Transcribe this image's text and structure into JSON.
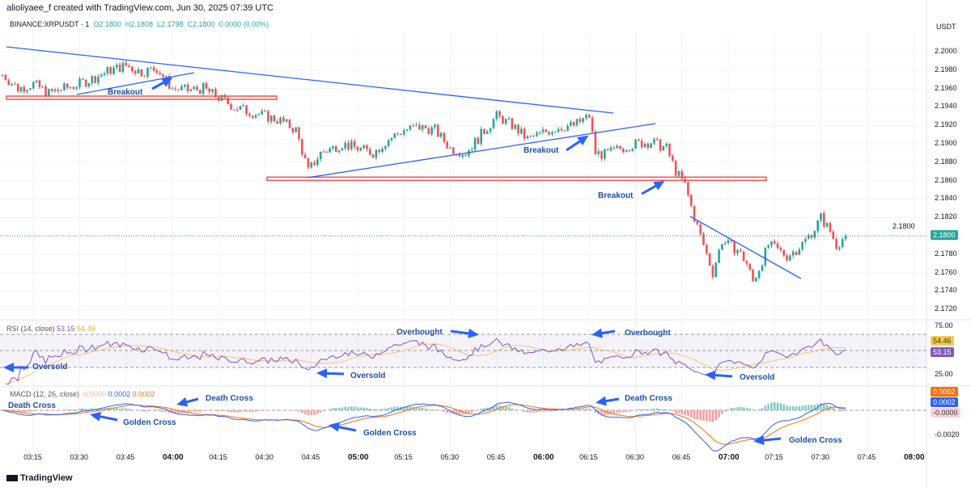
{
  "header": {
    "credit": "alioliyaee_f created with TradingView.com, Jun 30, 2025 07:39 UTC"
  },
  "legend": {
    "symbol": "BINANCE:XRPUSDT · 1",
    "o": "O2.1800",
    "h": "H2.1808",
    "l": "L2.1798",
    "c": "C2.1800",
    "chg": "0.0000 (0.00%)"
  },
  "rsi_legend": {
    "title": "RSI (14, close)",
    "v1": "53.15",
    "v2": "54.46"
  },
  "macd_legend": {
    "title": "MACD (12, 26, close)",
    "v1": "-0.0000",
    "v2": "0.0002",
    "v3": "0.0002"
  },
  "footer": {
    "brand": "TradingView"
  },
  "colors": {
    "up": "#26a69a",
    "down": "#ef5350",
    "annot": "#2962ff",
    "rsi": "#7e57c2",
    "rsi_ma": "#f7c66a",
    "macd": "#2962ff",
    "signal": "#ff6d00"
  },
  "annotations": {
    "breakout1": "Breakout",
    "breakout2": "Breakout",
    "breakout3": "Breakout",
    "overbought1": "Overbought",
    "overbought2": "Overbought",
    "oversold1": "Oversold",
    "oversold2": "Oversold",
    "oversold3": "Oversold",
    "death1": "Death Cross",
    "death2": "Death Cross",
    "death3": "Death Cross",
    "golden1": "Golden Cross",
    "golden2": "Golden Cross",
    "golden3": "Golden Cross"
  },
  "chart_data": {
    "type": "candlestick",
    "currency": "USDT",
    "ylim": [
      2.17,
      2.202
    ],
    "yticks": [
      "2.2000",
      "2.1980",
      "2.1960",
      "2.1940",
      "2.1920",
      "2.1900",
      "2.1880",
      "2.1860",
      "2.1840",
      "2.1820",
      "2.1800",
      "2.1780",
      "2.1760",
      "2.1740",
      "2.1720"
    ],
    "xticks": [
      "03:15",
      "03:30",
      "03:45",
      "04:00",
      "04:15",
      "04:30",
      "04:45",
      "05:00",
      "05:15",
      "05:30",
      "05:45",
      "06:00",
      "06:15",
      "06:30",
      "06:45",
      "07:00",
      "07:15",
      "07:30",
      "07:45",
      "08:00"
    ],
    "last_price": "2.1800",
    "close_path": [
      [
        "03:05",
        2.1975
      ],
      [
        "03:10",
        2.196
      ],
      [
        "03:15",
        2.1965
      ],
      [
        "03:20",
        2.1955
      ],
      [
        "03:25",
        2.196
      ],
      [
        "03:30",
        2.1965
      ],
      [
        "03:35",
        2.1972
      ],
      [
        "03:40",
        2.198
      ],
      [
        "03:45",
        2.1985
      ],
      [
        "03:50",
        2.1978
      ],
      [
        "03:55",
        2.1982
      ],
      [
        "04:00",
        2.196
      ],
      [
        "04:05",
        2.1958
      ],
      [
        "04:10",
        2.196
      ],
      [
        "04:15",
        2.195
      ],
      [
        "04:20",
        2.194
      ],
      [
        "04:25",
        2.1935
      ],
      [
        "04:30",
        2.193
      ],
      [
        "04:35",
        2.1925
      ],
      [
        "04:40",
        2.1915
      ],
      [
        "04:44",
        2.187
      ],
      [
        "04:48",
        2.189
      ],
      [
        "04:55",
        2.19
      ],
      [
        "05:00",
        2.1895
      ],
      [
        "05:05",
        2.189
      ],
      [
        "05:10",
        2.1905
      ],
      [
        "05:15",
        2.1915
      ],
      [
        "05:20",
        2.1918
      ],
      [
        "05:25",
        2.1915
      ],
      [
        "05:30",
        2.1895
      ],
      [
        "05:35",
        2.189
      ],
      [
        "05:40",
        2.191
      ],
      [
        "05:45",
        2.193
      ],
      [
        "05:50",
        2.192
      ],
      [
        "05:55",
        2.1905
      ],
      [
        "06:00",
        2.1912
      ],
      [
        "06:05",
        2.1918
      ],
      [
        "06:10",
        2.192
      ],
      [
        "06:15",
        2.193
      ],
      [
        "06:17",
        2.189
      ],
      [
        "06:20",
        2.1888
      ],
      [
        "06:25",
        2.1895
      ],
      [
        "06:30",
        2.19
      ],
      [
        "06:35",
        2.1902
      ],
      [
        "06:40",
        2.1895
      ],
      [
        "06:43",
        2.187
      ],
      [
        "06:46",
        2.1855
      ],
      [
        "06:49",
        2.182
      ],
      [
        "06:52",
        2.179
      ],
      [
        "06:55",
        2.176
      ],
      [
        "06:58",
        2.1795
      ],
      [
        "07:00",
        2.179
      ],
      [
        "07:03",
        2.1785
      ],
      [
        "07:06",
        2.177
      ],
      [
        "07:08",
        2.175
      ],
      [
        "07:10",
        2.1765
      ],
      [
        "07:13",
        2.179
      ],
      [
        "07:16",
        2.1785
      ],
      [
        "07:19",
        2.1778
      ],
      [
        "07:22",
        2.1785
      ],
      [
        "07:25",
        2.1795
      ],
      [
        "07:28",
        2.1808
      ],
      [
        "07:30",
        2.182
      ],
      [
        "07:33",
        2.1805
      ],
      [
        "07:35",
        2.179
      ],
      [
        "07:38",
        2.18
      ]
    ],
    "support_levels": [
      2.195,
      2.1862
    ],
    "rsi": {
      "levels": [
        "75.00",
        "25.00"
      ],
      "value": "53.15",
      "ma": "54.46"
    },
    "macd": {
      "ticks": [
        "-0.0020"
      ],
      "macd": "0.0002",
      "signal": "0.0002",
      "hist": "-0.0000"
    }
  }
}
